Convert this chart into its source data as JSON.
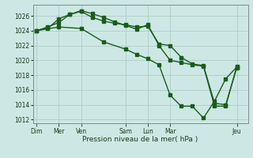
{
  "background_color": "#cde8e4",
  "grid_color": "#b0ccc8",
  "line_color": "#1a5c1a",
  "xlabel": "Pression niveau de la mer( hPa )",
  "ylim": [
    1011.5,
    1027.5
  ],
  "yticks": [
    1012,
    1014,
    1016,
    1018,
    1020,
    1022,
    1024,
    1026
  ],
  "day_labels": [
    "Dim",
    "Mer",
    "Ven",
    "Sam",
    "Lun",
    "Mar",
    "Jeu"
  ],
  "day_positions": [
    0,
    12,
    24,
    48,
    60,
    72,
    108
  ],
  "xlim": [
    -2,
    114
  ],
  "line1_x": [
    0,
    6,
    12,
    18,
    24,
    30,
    36,
    42,
    48,
    54,
    60,
    66,
    72,
    78,
    84,
    90,
    96,
    102,
    108
  ],
  "line1_y": [
    1024.0,
    1024.5,
    1025.1,
    1026.2,
    1026.6,
    1025.8,
    1025.3,
    1025.0,
    1024.8,
    1024.5,
    1024.6,
    1022.2,
    1022.0,
    1020.4,
    1019.5,
    1019.3,
    1014.2,
    1014.0,
    1019.0
  ],
  "line2_x": [
    0,
    6,
    12,
    18,
    24,
    30,
    36,
    42,
    48,
    54,
    60,
    66,
    72,
    78,
    84,
    90,
    96,
    102,
    108
  ],
  "line2_y": [
    1024.0,
    1024.3,
    1025.6,
    1026.2,
    1026.7,
    1026.3,
    1025.8,
    1025.2,
    1024.7,
    1024.2,
    1024.8,
    1022.0,
    1020.0,
    1019.7,
    1019.4,
    1019.2,
    1013.8,
    1013.8,
    1019.2
  ],
  "line3_x": [
    0,
    12,
    24,
    36,
    48,
    54,
    60,
    66,
    72,
    78,
    84,
    90,
    96,
    102,
    108
  ],
  "line3_y": [
    1024.0,
    1024.5,
    1024.3,
    1022.5,
    1021.5,
    1020.8,
    1020.2,
    1019.4,
    1015.3,
    1013.8,
    1013.8,
    1012.2,
    1014.5,
    1017.5,
    1019.1
  ],
  "figsize": [
    3.2,
    2.0
  ],
  "dpi": 100
}
